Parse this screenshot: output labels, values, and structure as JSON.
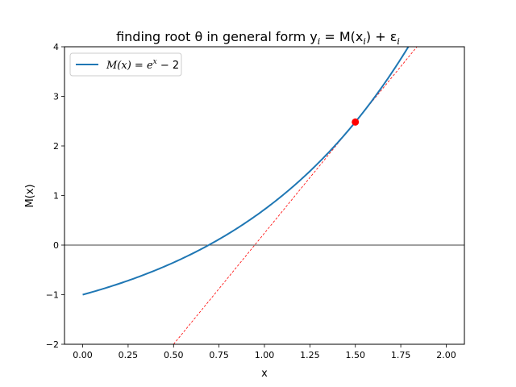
{
  "chart_data": {
    "type": "line",
    "title_text": "finding root θ in general form y",
    "title_sub_i": "i",
    "title_mid": " = M(x",
    "title_sub_i2": "i",
    "title_mid2": ") + ε",
    "title_sub_i3": "i",
    "xlabel": "x",
    "ylabel": "M(x)",
    "xlim": [
      -0.1,
      2.1
    ],
    "ylim": [
      -2,
      4
    ],
    "x_ticks": [
      0.0,
      0.25,
      0.5,
      0.75,
      1.0,
      1.25,
      1.5,
      1.75,
      2.0
    ],
    "x_tick_labels": [
      "0.00",
      "0.25",
      "0.50",
      "0.75",
      "1.00",
      "1.25",
      "1.50",
      "1.75",
      "2.00"
    ],
    "y_ticks": [
      -2,
      -1,
      0,
      1,
      2,
      3,
      4
    ],
    "y_tick_labels": [
      "−2",
      "−1",
      "0",
      "1",
      "2",
      "3",
      "4"
    ],
    "grid": false,
    "legend_position": "top-left",
    "series": [
      {
        "name": "M(x) = e^x − 2",
        "legend_main": "M(x) = e",
        "legend_sup": "x",
        "legend_tail": " − 2",
        "color": "#1f77b4",
        "function": "exp(x) - 2",
        "x_range": [
          0.0,
          2.0
        ]
      }
    ],
    "tangent_line": {
      "color": "#ff0000",
      "style": "dashed",
      "point_x": 1.5,
      "slope": 4.4817,
      "x_range": [
        0.5,
        2.1
      ]
    },
    "marked_point": {
      "x": 1.5,
      "y": 2.4817,
      "color": "#ff0000"
    },
    "zero_line": {
      "y": 0,
      "color": "#000000"
    }
  }
}
